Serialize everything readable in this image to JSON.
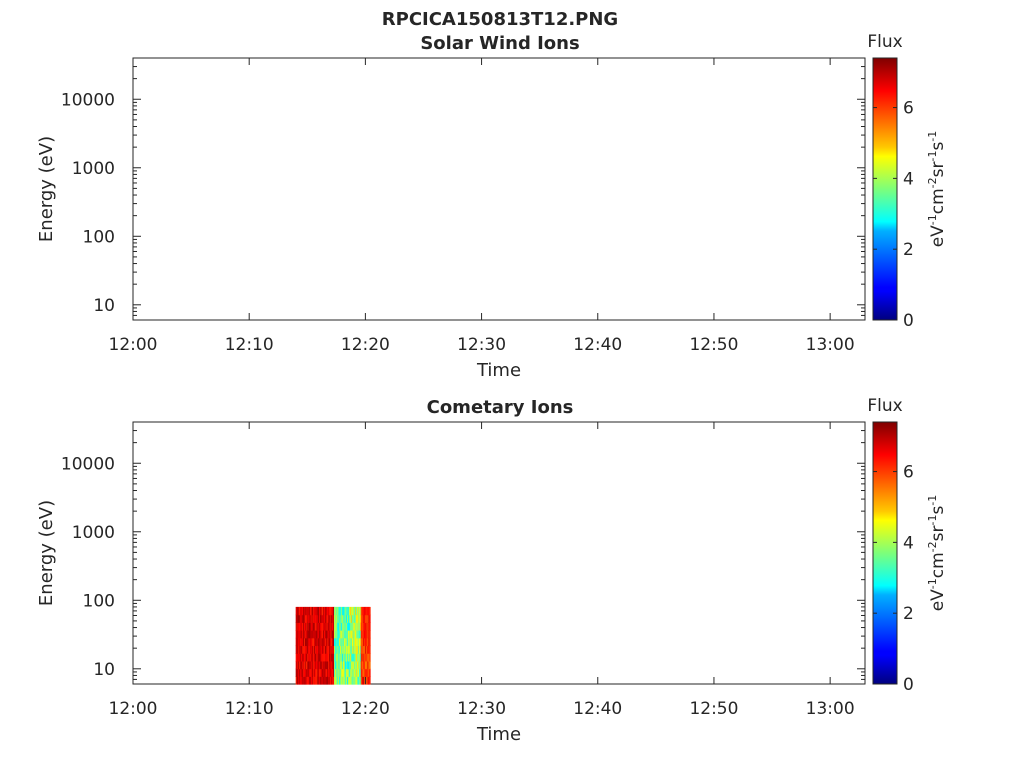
{
  "figure": {
    "title": "RPCICA150813T12.PNG"
  },
  "chart_data": [
    {
      "type": "heatmap",
      "title": "Solar Wind Ions",
      "xlabel": "Time",
      "ylabel": "Energy (eV)",
      "x_ticks": [
        "12:00",
        "12:10",
        "12:20",
        "12:30",
        "12:40",
        "12:50",
        "13:00"
      ],
      "x_range": [
        "12:00",
        "13:03"
      ],
      "y_scale": "log",
      "y_ticks": [
        "10",
        "100",
        "1000",
        "10000"
      ],
      "y_range": [
        6,
        40000
      ],
      "colorbar": {
        "label": "Flux",
        "unit_base": [
          "eV",
          "cm",
          "sr",
          "s"
        ],
        "unit_exp": [
          "-1",
          "-2",
          "-1",
          "-1"
        ],
        "ticks": [
          "0",
          "2",
          "4",
          "6"
        ],
        "range": [
          0,
          7.4
        ],
        "colormap": "jet"
      },
      "blocks": []
    },
    {
      "type": "heatmap",
      "title": "Cometary Ions",
      "xlabel": "Time",
      "ylabel": "Energy (eV)",
      "x_ticks": [
        "12:00",
        "12:10",
        "12:20",
        "12:30",
        "12:40",
        "12:50",
        "13:00"
      ],
      "x_range": [
        "12:00",
        "13:03"
      ],
      "y_scale": "log",
      "y_ticks": [
        "10",
        "100",
        "1000",
        "10000"
      ],
      "y_range": [
        6,
        40000
      ],
      "colorbar": {
        "label": "Flux",
        "unit_base": [
          "eV",
          "cm",
          "sr",
          "s"
        ],
        "unit_exp": [
          "-1",
          "-2",
          "-1",
          "-1"
        ],
        "ticks": [
          "0",
          "2",
          "4",
          "6"
        ],
        "range": [
          0,
          7.4
        ],
        "colormap": "jet"
      },
      "blocks": [
        {
          "time_start": "12:14",
          "time_end": "12:17.3",
          "energy_min": 6,
          "energy_max": 80,
          "flux_min": 6.2,
          "flux_max": 7.2
        },
        {
          "time_start": "12:17.3",
          "time_end": "12:18.7",
          "energy_min": 6,
          "energy_max": 80,
          "flux_min": 2.6,
          "flux_max": 4.6
        },
        {
          "time_start": "12:18.7",
          "time_end": "12:19.6",
          "energy_min": 6,
          "energy_max": 80,
          "flux_min": 3.0,
          "flux_max": 5.0
        },
        {
          "time_start": "12:19.6",
          "time_end": "12:20.4",
          "energy_min": 6,
          "energy_max": 80,
          "flux_min": 5.6,
          "flux_max": 6.8
        }
      ]
    }
  ]
}
